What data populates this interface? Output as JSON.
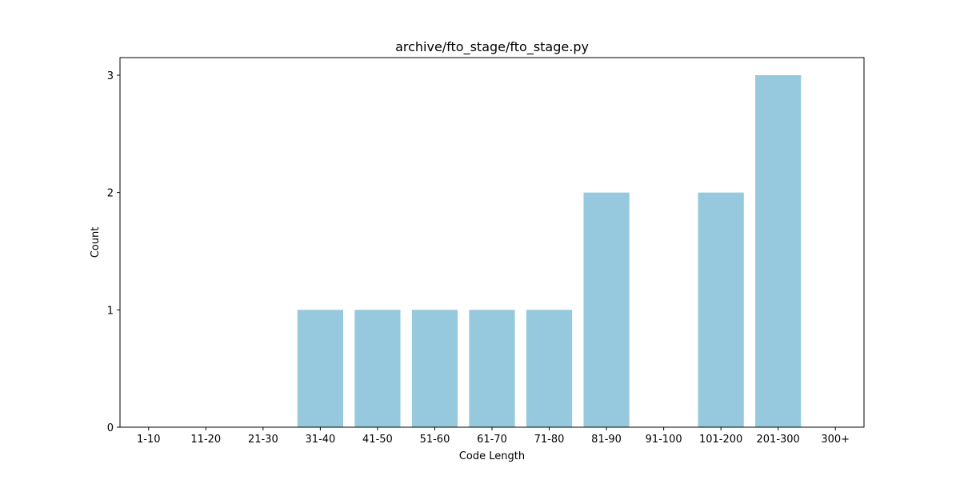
{
  "chart_data": {
    "type": "bar",
    "title": "archive/fto_stage/fto_stage.py",
    "xlabel": "Code Length",
    "ylabel": "Count",
    "categories": [
      "1-10",
      "11-20",
      "21-30",
      "31-40",
      "41-50",
      "51-60",
      "61-70",
      "71-80",
      "81-90",
      "91-100",
      "101-200",
      "201-300",
      "300+"
    ],
    "values": [
      0,
      0,
      0,
      1,
      1,
      1,
      1,
      1,
      2,
      0,
      2,
      3,
      0
    ],
    "ylim": [
      0,
      3.15
    ],
    "yticks": [
      0,
      1,
      2,
      3
    ],
    "grid": false,
    "bar_color": "#96c9dd"
  }
}
